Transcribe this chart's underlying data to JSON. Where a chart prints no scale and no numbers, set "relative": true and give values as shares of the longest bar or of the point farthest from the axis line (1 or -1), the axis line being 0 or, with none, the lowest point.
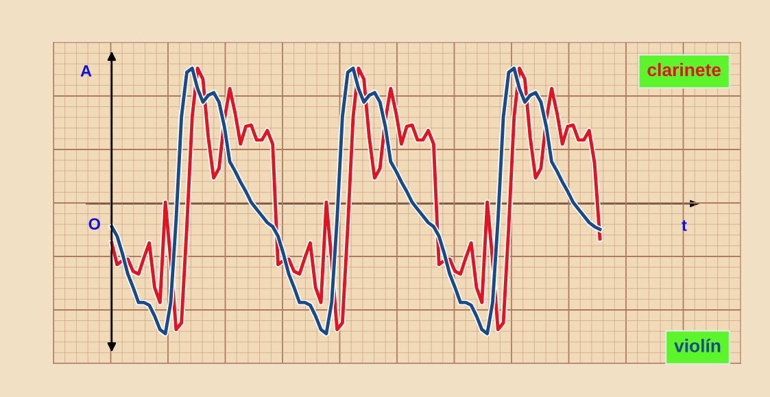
{
  "chart_data": {
    "type": "line",
    "relative": true,
    "grid": true,
    "legend": false,
    "marker": "none",
    "line_style": "solid",
    "categories": [
      null,
      null,
      null,
      null,
      null,
      null,
      null,
      null,
      null,
      null,
      null,
      null,
      null,
      null,
      null,
      null,
      null,
      null,
      null,
      null,
      null,
      null,
      null,
      null,
      null,
      null,
      null,
      null,
      null,
      null,
      null,
      null,
      null,
      null,
      null,
      null,
      null,
      null,
      null,
      null,
      null,
      null,
      null,
      null,
      null,
      null,
      null,
      null,
      null,
      null,
      null,
      null,
      null,
      null,
      null,
      null,
      null,
      null,
      null,
      null,
      null,
      null,
      null,
      null,
      null,
      null,
      null,
      null,
      null,
      null,
      null,
      null,
      null,
      null,
      null,
      null,
      null,
      null,
      null,
      null,
      null,
      null,
      null,
      null,
      null,
      null,
      null,
      null,
      null,
      null,
      null,
      null
    ],
    "annotations": [
      "A",
      "O",
      "t"
    ],
    "series": [
      {
        "name": "clarinete",
        "color": "#e3141f",
        "values": [
          -0.29,
          -0.45,
          -0.42,
          -0.41,
          -0.5,
          -0.52,
          -0.4,
          -0.29,
          -0.62,
          -0.73,
          0.01,
          -0.42,
          -0.93,
          -0.88,
          -0.17,
          0.64,
          1.0,
          0.92,
          0.49,
          0.19,
          0.26,
          0.62,
          0.85,
          0.67,
          0.44,
          0.57,
          0.58,
          0.47,
          0.47,
          0.54,
          0.44,
          -0.45,
          -0.42,
          -0.41,
          -0.5,
          -0.52,
          -0.4,
          -0.29,
          -0.62,
          -0.73,
          0.01,
          -0.42,
          -0.93,
          -0.88,
          -0.17,
          0.64,
          1.0,
          0.92,
          0.49,
          0.19,
          0.26,
          0.62,
          0.85,
          0.67,
          0.44,
          0.57,
          0.58,
          0.47,
          0.47,
          0.54,
          0.44,
          -0.45,
          -0.42,
          -0.41,
          -0.5,
          -0.52,
          -0.4,
          -0.29,
          -0.62,
          -0.73,
          0.01,
          -0.42,
          -0.93,
          -0.88,
          -0.17,
          0.64,
          1.0,
          0.92,
          0.49,
          0.19,
          0.26,
          0.62,
          0.85,
          0.67,
          0.44,
          0.57,
          0.58,
          0.47,
          0.47,
          0.54,
          0.3,
          -0.26
        ]
      },
      {
        "name": "violín",
        "color": "#1b4a8a",
        "values": [
          -0.17,
          -0.24,
          -0.37,
          -0.52,
          -0.62,
          -0.73,
          -0.73,
          -0.75,
          -0.83,
          -0.93,
          -0.96,
          -0.73,
          -0.12,
          0.64,
          0.97,
          1.0,
          0.85,
          0.75,
          0.8,
          0.82,
          0.75,
          0.57,
          0.31,
          0.24,
          0.16,
          0.09,
          0.01,
          -0.04,
          -0.09,
          -0.14,
          -0.17,
          -0.24,
          -0.37,
          -0.52,
          -0.62,
          -0.73,
          -0.73,
          -0.75,
          -0.83,
          -0.93,
          -0.96,
          -0.73,
          -0.12,
          0.64,
          0.97,
          1.0,
          0.85,
          0.75,
          0.8,
          0.82,
          0.75,
          0.57,
          0.31,
          0.24,
          0.16,
          0.09,
          0.01,
          -0.04,
          -0.09,
          -0.14,
          -0.17,
          -0.24,
          -0.37,
          -0.52,
          -0.62,
          -0.73,
          -0.73,
          -0.75,
          -0.83,
          -0.93,
          -0.96,
          -0.73,
          -0.12,
          0.64,
          0.97,
          1.0,
          0.85,
          0.75,
          0.8,
          0.82,
          0.75,
          0.57,
          0.31,
          0.24,
          0.16,
          0.09,
          0.01,
          -0.04,
          -0.09,
          -0.14,
          -0.17,
          -0.19
        ]
      }
    ]
  }
}
